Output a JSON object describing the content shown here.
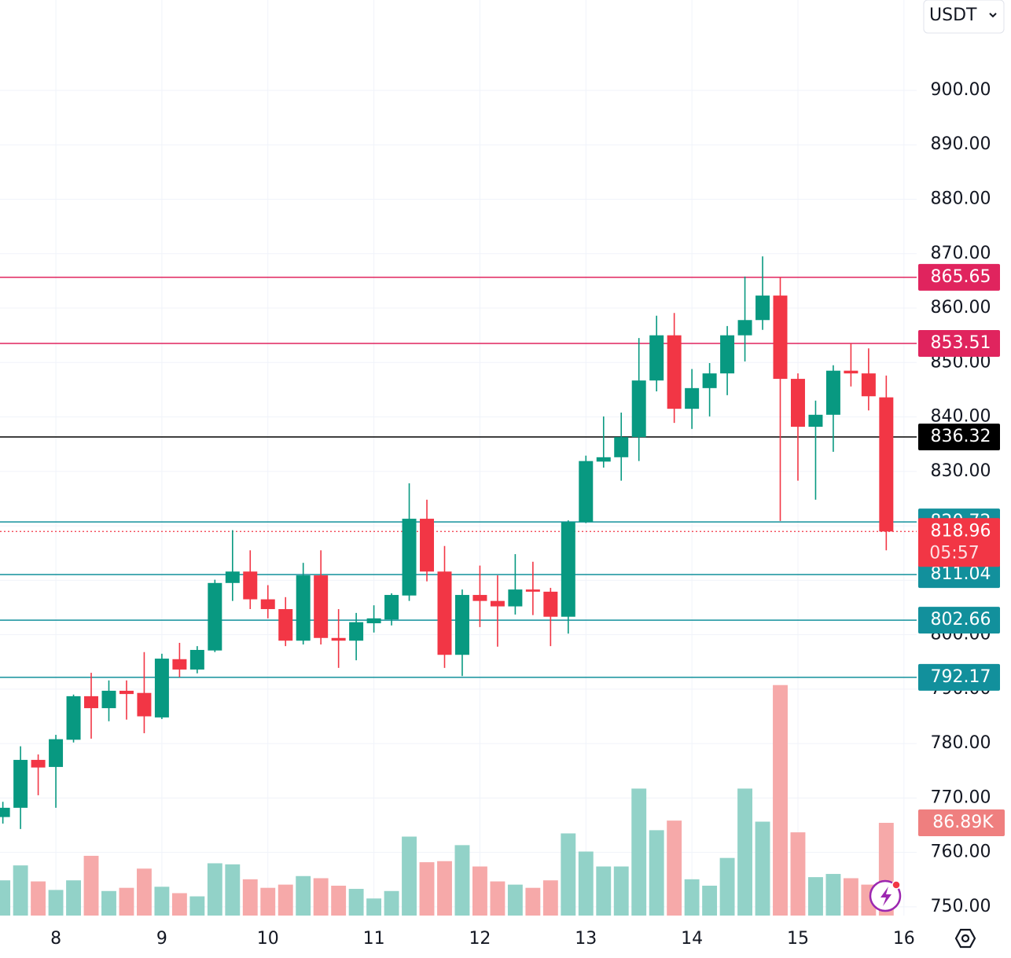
{
  "chart_data": {
    "type": "candlestick",
    "quote_currency": "USDT",
    "x": [
      7.5,
      7.6667,
      7.8333,
      8,
      8.1667,
      8.3333,
      8.5,
      8.6667,
      8.8333,
      9,
      9.1667,
      9.3333,
      9.5,
      9.6667,
      9.8333,
      10,
      10.1667,
      10.3333,
      10.5,
      10.6667,
      10.8333,
      11,
      11.1667,
      11.3333,
      11.5,
      11.6667,
      11.8333,
      12,
      12.1667,
      12.3333,
      12.5,
      12.6667,
      12.8333,
      13,
      13.1667,
      13.3333,
      13.5,
      13.6667,
      13.8333,
      14,
      14.1667,
      14.3333,
      14.5,
      14.6667,
      14.8333,
      15,
      15.1667,
      15.3333,
      15.5,
      15.6667,
      15.8333
    ],
    "open": [
      766.5,
      768.2,
      777.0,
      775.7,
      780.7,
      788.7,
      786.5,
      789.7,
      789.3,
      784.8,
      795.5,
      793.6,
      797.1,
      809.5,
      811.6,
      806.5,
      804.7,
      798.9,
      810.9,
      799.4,
      798.9,
      802.1,
      802.8,
      807.2,
      821.3,
      811.6,
      796.3,
      807.3,
      806.2,
      805.2,
      808.3,
      807.9,
      803.3,
      820.7,
      831.8,
      832.6,
      836.3,
      846.7,
      855.0,
      841.5,
      845.3,
      848.0,
      855.0,
      857.8,
      862.3,
      847.0,
      838.2,
      840.4,
      848.5,
      848.0,
      843.6
    ],
    "high": [
      769.3,
      779.5,
      778.0,
      781.6,
      789.0,
      793.0,
      791.6,
      791.6,
      796.8,
      796.5,
      798.5,
      797.9,
      810.1,
      819.2,
      815.5,
      809.1,
      806.9,
      813.2,
      815.5,
      804.7,
      804.0,
      805.4,
      807.6,
      827.8,
      824.8,
      816.3,
      808.3,
      812.7,
      810.9,
      814.8,
      813.4,
      808.6,
      821.0,
      832.9,
      840.1,
      840.8,
      854.5,
      858.6,
      859.1,
      848.8,
      849.9,
      856.7,
      865.8,
      869.5,
      865.65,
      848.0,
      843.0,
      849.5,
      853.5,
      852.6,
      847.6
    ],
    "low": [
      765.3,
      764.3,
      770.5,
      768.2,
      780.2,
      780.9,
      784.1,
      784.4,
      781.9,
      784.5,
      792.2,
      792.9,
      796.8,
      806.2,
      804.7,
      803.0,
      797.9,
      798.2,
      798.2,
      793.9,
      795.3,
      800.4,
      801.7,
      806.2,
      809.8,
      793.9,
      792.4,
      801.4,
      797.8,
      803.7,
      803.6,
      797.9,
      800.2,
      820.5,
      830.7,
      828.3,
      831.9,
      844.7,
      838.9,
      837.8,
      840.1,
      844.0,
      850.2,
      856.0,
      820.9,
      828.3,
      824.8,
      833.6,
      845.6,
      841.2,
      815.5
    ],
    "close": [
      768.2,
      777.0,
      775.6,
      780.8,
      788.7,
      786.5,
      789.7,
      789.1,
      785.0,
      795.6,
      793.6,
      797.2,
      809.5,
      811.6,
      806.5,
      804.7,
      798.9,
      810.9,
      799.4,
      798.9,
      802.3,
      803.0,
      807.3,
      821.3,
      811.6,
      796.3,
      807.3,
      806.2,
      805.2,
      808.3,
      807.9,
      803.3,
      820.7,
      831.9,
      832.6,
      836.3,
      846.7,
      855.0,
      841.5,
      845.3,
      848.0,
      855.0,
      857.8,
      862.3,
      847.0,
      838.2,
      840.4,
      848.5,
      848.0,
      843.8,
      818.96
    ],
    "volume": [
      33,
      47,
      32,
      24,
      33,
      56,
      23,
      26,
      44,
      27,
      21,
      18,
      49,
      48,
      34,
      26,
      29,
      37,
      35,
      28,
      25,
      16,
      23,
      74,
      50,
      51,
      66,
      46,
      32,
      29,
      26,
      33,
      77,
      60,
      46,
      46,
      119,
      80,
      89,
      34,
      28,
      54,
      119,
      88,
      216,
      78,
      36,
      39,
      35,
      29,
      86.89
    ],
    "last_volume_label": "86.89K",
    "countdown": "05:57",
    "up_color": "#089981",
    "down_color": "#f23645",
    "volume_up_color": "#92d2c8",
    "volume_down_color": "#f6a9a9",
    "price_lines": [
      {
        "value": 865.65,
        "color": "#e0245e"
      },
      {
        "value": 853.51,
        "color": "#e0245e"
      },
      {
        "value": 836.32,
        "color": "#000000"
      },
      {
        "value": 820.72,
        "color": "#12909c"
      },
      {
        "value": 811.04,
        "color": "#12909c"
      },
      {
        "value": 802.66,
        "color": "#12909c"
      },
      {
        "value": 792.17,
        "color": "#12909c"
      }
    ],
    "xlim": [
      7.473,
      16.12
    ],
    "xticks": [
      8,
      9,
      10,
      11,
      12,
      13,
      14,
      15,
      16
    ],
    "ylim": [
      748.4,
      916.6
    ],
    "yticks": [
      {
        "value": 750,
        "label": "750.00"
      },
      {
        "value": 760,
        "label": "760.00"
      },
      {
        "value": 770,
        "label": "770.00"
      },
      {
        "value": 780,
        "label": "780.00"
      },
      {
        "value": 790,
        "label": "790.00"
      },
      {
        "value": 800,
        "label": "800.00"
      },
      {
        "value": 810,
        "label": "810.00"
      },
      {
        "value": 820,
        "label": "820.00"
      },
      {
        "value": 830,
        "label": "830.00"
      },
      {
        "value": 840,
        "label": "840.00"
      },
      {
        "value": 850,
        "label": "850.00"
      },
      {
        "value": 860,
        "label": "860.00"
      },
      {
        "value": 870,
        "label": "870.00"
      },
      {
        "value": 880,
        "label": "880.00"
      },
      {
        "value": 890,
        "label": "890.00"
      },
      {
        "value": 900,
        "label": "900.00"
      }
    ],
    "y2lim": [
      0,
      858
    ],
    "grid": true
  }
}
